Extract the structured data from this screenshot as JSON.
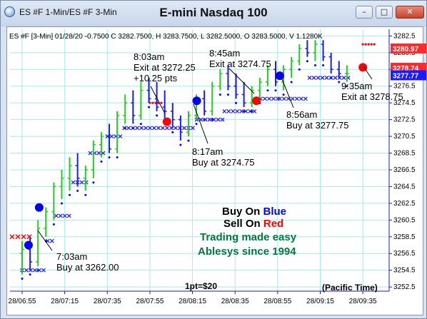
{
  "window": {
    "tabs_title": "ES #F 1-Min/ES #F 3-Min",
    "chart_title": "E-mini Nasdaq 100",
    "buttons": {
      "minimize": "–",
      "maximize": "□",
      "close": "✕"
    }
  },
  "info_line": "ES #F [3-Min] 01/28/20  -0.7500 C 3282.7500, H 3283.7500, L 3282.5000, O 3283.5000, V 1.1280K",
  "annotations": {
    "a1": [
      "8:03am",
      "Exit at 3272.25",
      "+10.25 pts"
    ],
    "a2": [
      "8:45am",
      "Exit at 3274.75"
    ],
    "a3": [
      "8:17am",
      "Buy at 3274.75"
    ],
    "a4": [
      "8:56am",
      "Buy at 3277.75"
    ],
    "a5": [
      "9:35am",
      "Exit at 3278.75"
    ],
    "a6": [
      "7:03am",
      "Buy at 3262.00"
    ]
  },
  "legend": {
    "buy_prefix": "Buy On ",
    "buy_word": "Blue",
    "sell_prefix": "Sell On ",
    "sell_word": "Red",
    "line3": "Trading made easy",
    "line4": "Ablesys since 1994"
  },
  "footer": {
    "point_value": "1pt=$20",
    "timezone": "(Pacific Time)"
  },
  "price_tags": {
    "last": "3280.97",
    "red": "3278.74",
    "blue": "3277.77"
  },
  "colors": {
    "up_bar": "#22cc22",
    "down_bar": "#1a1aff",
    "buy_marker": "#0000ff",
    "sell_marker": "#ff0000",
    "stop_line": "#2222ff",
    "grid": "#a8e8e8",
    "axis": "#1a1acc",
    "green_text": "#007a3d"
  },
  "chart_data": {
    "type": "bar",
    "title": "E-mini Nasdaq 100",
    "y_ticks": [
      3252.5,
      3254.5,
      3256.5,
      3258.5,
      3260.5,
      3262.5,
      3264.5,
      3266.5,
      3268.5,
      3270.5,
      3272.5,
      3274.5,
      3276.5,
      3278.5,
      3280.5,
      3282.5
    ],
    "x_ticks": [
      "28/06:55",
      "28/07:15",
      "28/07:35",
      "28/07:55",
      "28/08:15",
      "28/08:35",
      "28/08:55",
      "28/09:15",
      "28/09:35"
    ],
    "ylim": [
      3252.0,
      3283.3
    ],
    "bars_per_minute_step": 3,
    "start_time": "06:55",
    "bars": [
      {
        "o": 3256.5,
        "h": 3258.0,
        "l": 3254.0,
        "c": 3257.0
      },
      {
        "o": 3257.0,
        "h": 3258.5,
        "l": 3254.5,
        "c": 3255.5
      },
      {
        "o": 3255.5,
        "h": 3260.5,
        "l": 3255.0,
        "c": 3259.5
      },
      {
        "o": 3259.5,
        "h": 3262.0,
        "l": 3258.5,
        "c": 3261.5
      },
      {
        "o": 3261.5,
        "h": 3265.0,
        "l": 3260.5,
        "c": 3264.5
      },
      {
        "o": 3264.5,
        "h": 3266.5,
        "l": 3263.0,
        "c": 3265.5
      },
      {
        "o": 3265.5,
        "h": 3268.0,
        "l": 3264.0,
        "c": 3267.0
      },
      {
        "o": 3267.0,
        "h": 3268.5,
        "l": 3264.5,
        "c": 3265.5
      },
      {
        "o": 3265.5,
        "h": 3267.0,
        "l": 3264.0,
        "c": 3266.5
      },
      {
        "o": 3266.5,
        "h": 3270.0,
        "l": 3265.5,
        "c": 3269.5
      },
      {
        "o": 3269.5,
        "h": 3271.0,
        "l": 3268.0,
        "c": 3270.5
      },
      {
        "o": 3270.5,
        "h": 3272.0,
        "l": 3268.5,
        "c": 3269.0
      },
      {
        "o": 3269.0,
        "h": 3273.5,
        "l": 3268.5,
        "c": 3273.0
      },
      {
        "o": 3273.0,
        "h": 3275.5,
        "l": 3272.0,
        "c": 3274.5
      },
      {
        "o": 3274.5,
        "h": 3276.0,
        "l": 3272.0,
        "c": 3273.0
      },
      {
        "o": 3273.0,
        "h": 3277.0,
        "l": 3272.5,
        "c": 3276.0
      },
      {
        "o": 3276.0,
        "h": 3277.5,
        "l": 3274.5,
        "c": 3275.0
      },
      {
        "o": 3275.0,
        "h": 3277.0,
        "l": 3273.5,
        "c": 3274.0
      },
      {
        "o": 3274.0,
        "h": 3276.0,
        "l": 3272.5,
        "c": 3273.5
      },
      {
        "o": 3273.5,
        "h": 3274.5,
        "l": 3271.5,
        "c": 3272.5
      },
      {
        "o": 3272.5,
        "h": 3273.0,
        "l": 3270.0,
        "c": 3271.0
      },
      {
        "o": 3271.0,
        "h": 3273.5,
        "l": 3270.5,
        "c": 3273.0
      },
      {
        "o": 3273.0,
        "h": 3275.5,
        "l": 3272.5,
        "c": 3275.0
      },
      {
        "o": 3275.0,
        "h": 3276.0,
        "l": 3273.0,
        "c": 3273.5
      },
      {
        "o": 3273.5,
        "h": 3277.0,
        "l": 3273.0,
        "c": 3276.5
      },
      {
        "o": 3276.5,
        "h": 3278.5,
        "l": 3276.0,
        "c": 3278.0
      },
      {
        "o": 3278.0,
        "h": 3279.0,
        "l": 3276.0,
        "c": 3276.5
      },
      {
        "o": 3276.5,
        "h": 3278.0,
        "l": 3275.0,
        "c": 3275.5
      },
      {
        "o": 3275.5,
        "h": 3277.0,
        "l": 3274.0,
        "c": 3274.5
      },
      {
        "o": 3274.5,
        "h": 3276.5,
        "l": 3274.0,
        "c": 3276.0
      },
      {
        "o": 3276.0,
        "h": 3277.5,
        "l": 3275.0,
        "c": 3277.0
      },
      {
        "o": 3277.0,
        "h": 3279.0,
        "l": 3276.5,
        "c": 3278.5
      },
      {
        "o": 3278.5,
        "h": 3279.5,
        "l": 3276.5,
        "c": 3277.0
      },
      {
        "o": 3277.0,
        "h": 3279.0,
        "l": 3276.0,
        "c": 3278.5
      },
      {
        "o": 3278.5,
        "h": 3280.0,
        "l": 3277.5,
        "c": 3279.5
      },
      {
        "o": 3279.5,
        "h": 3281.5,
        "l": 3279.0,
        "c": 3281.0
      },
      {
        "o": 3281.0,
        "h": 3282.0,
        "l": 3280.0,
        "c": 3280.5
      },
      {
        "o": 3280.5,
        "h": 3282.0,
        "l": 3279.5,
        "c": 3281.5
      },
      {
        "o": 3281.5,
        "h": 3282.0,
        "l": 3279.5,
        "c": 3280.0
      },
      {
        "o": 3280.0,
        "h": 3280.5,
        "l": 3278.0,
        "c": 3278.5
      },
      {
        "o": 3278.5,
        "h": 3279.5,
        "l": 3277.5,
        "c": 3278.0
      },
      {
        "o": 3278.0,
        "h": 3279.0,
        "l": 3277.0,
        "c": 3278.0
      }
    ],
    "signals": [
      {
        "kind": "buy",
        "time": "07:03",
        "price": 3262.0
      },
      {
        "kind": "buy",
        "time": "06:58",
        "price": 3257.5
      },
      {
        "kind": "sell",
        "time": "08:03",
        "price": 3272.25
      },
      {
        "kind": "buy",
        "time": "08:17",
        "price": 3274.75
      },
      {
        "kind": "sell",
        "time": "08:45",
        "price": 3274.75
      },
      {
        "kind": "buy",
        "time": "08:56",
        "price": 3277.75
      },
      {
        "kind": "sell",
        "time": "09:35",
        "price": 3278.75
      }
    ],
    "trailing_stops": [
      {
        "side": "long",
        "time": "06:55",
        "price": 3254.5
      },
      {
        "side": "long",
        "time": "07:07",
        "price": 3258.0
      },
      {
        "side": "long",
        "time": "07:11",
        "price": 3261.0
      },
      {
        "side": "long",
        "time": "07:19",
        "price": 3265.0
      },
      {
        "side": "long",
        "time": "07:27",
        "price": 3268.5
      },
      {
        "side": "long",
        "time": "07:35",
        "price": 3270.5
      },
      {
        "side": "long",
        "time": "07:43",
        "price": 3271.5
      },
      {
        "side": "long",
        "time": "07:55",
        "price": 3271.5
      },
      {
        "side": "long",
        "time": "08:17",
        "price": 3272.5
      },
      {
        "side": "long",
        "time": "08:30",
        "price": 3273.5
      },
      {
        "side": "long",
        "time": "08:45",
        "price": 3275.0
      },
      {
        "side": "long",
        "time": "08:56",
        "price": 3275.0
      },
      {
        "side": "long",
        "time": "09:10",
        "price": 3277.5
      },
      {
        "side": "long",
        "time": "09:30",
        "price": 3277.5
      },
      {
        "side": "short",
        "time": "07:55",
        "price": 3274.5
      },
      {
        "side": "short",
        "time": "09:35",
        "price": 3281.5
      }
    ]
  }
}
